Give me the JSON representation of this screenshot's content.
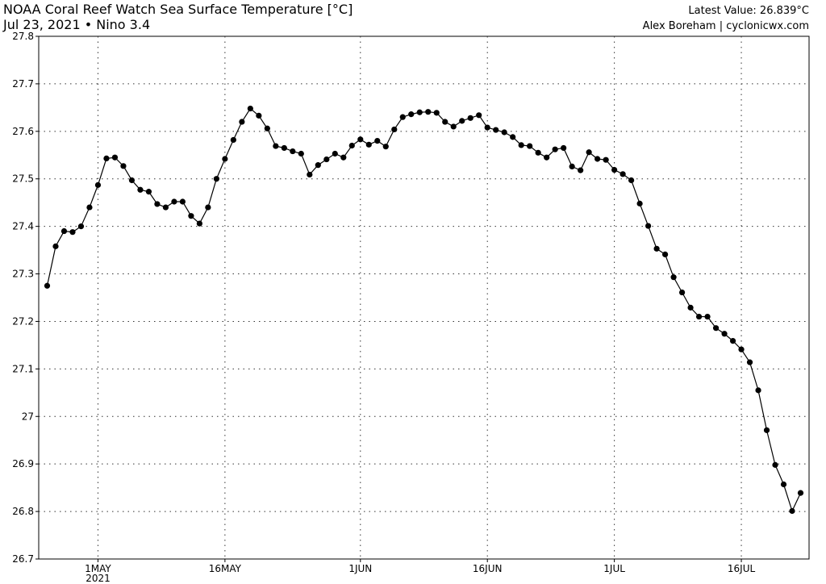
{
  "chart_data": {
    "type": "line",
    "title": "NOAA Coral Reef Watch Sea Surface Temperature [°C]",
    "subtitle": "Jul 23, 2021 • Nino 3.4",
    "annotation_latest": "Latest Value: 26.839°C",
    "annotation_credit": "Alex Boreham | cyclonicwx.com",
    "x": [
      "2021-04-25",
      "2021-04-26",
      "2021-04-27",
      "2021-04-28",
      "2021-04-29",
      "2021-04-30",
      "2021-05-01",
      "2021-05-02",
      "2021-05-03",
      "2021-05-04",
      "2021-05-05",
      "2021-05-06",
      "2021-05-07",
      "2021-05-08",
      "2021-05-09",
      "2021-05-10",
      "2021-05-11",
      "2021-05-12",
      "2021-05-13",
      "2021-05-14",
      "2021-05-15",
      "2021-05-16",
      "2021-05-17",
      "2021-05-18",
      "2021-05-19",
      "2021-05-20",
      "2021-05-21",
      "2021-05-22",
      "2021-05-23",
      "2021-05-24",
      "2021-05-25",
      "2021-05-26",
      "2021-05-27",
      "2021-05-28",
      "2021-05-29",
      "2021-05-30",
      "2021-05-31",
      "2021-06-01",
      "2021-06-02",
      "2021-06-03",
      "2021-06-04",
      "2021-06-05",
      "2021-06-06",
      "2021-06-07",
      "2021-06-08",
      "2021-06-09",
      "2021-06-10",
      "2021-06-11",
      "2021-06-12",
      "2021-06-13",
      "2021-06-14",
      "2021-06-15",
      "2021-06-16",
      "2021-06-17",
      "2021-06-18",
      "2021-06-19",
      "2021-06-20",
      "2021-06-21",
      "2021-06-22",
      "2021-06-23",
      "2021-06-24",
      "2021-06-25",
      "2021-06-26",
      "2021-06-27",
      "2021-06-28",
      "2021-06-29",
      "2021-06-30",
      "2021-07-01",
      "2021-07-02",
      "2021-07-03",
      "2021-07-04",
      "2021-07-05",
      "2021-07-06",
      "2021-07-07",
      "2021-07-08",
      "2021-07-09",
      "2021-07-10",
      "2021-07-11",
      "2021-07-12",
      "2021-07-13",
      "2021-07-14",
      "2021-07-15",
      "2021-07-16",
      "2021-07-17",
      "2021-07-18",
      "2021-07-19",
      "2021-07-20",
      "2021-07-21",
      "2021-07-22",
      "2021-07-23"
    ],
    "series": [
      {
        "color": "#000000",
        "values": [
          27.275,
          27.358,
          27.39,
          27.388,
          27.4,
          27.44,
          27.487,
          27.543,
          27.545,
          27.527,
          27.497,
          27.477,
          27.473,
          27.447,
          27.44,
          27.452,
          27.452,
          27.422,
          27.406,
          27.44,
          27.5,
          27.542,
          27.582,
          27.62,
          27.648,
          27.633,
          27.606,
          27.569,
          27.565,
          27.558,
          27.553,
          27.509,
          27.529,
          27.541,
          27.553,
          27.545,
          27.57,
          27.583,
          27.572,
          27.58,
          27.568,
          27.604,
          27.63,
          27.636,
          27.64,
          27.641,
          27.639,
          27.62,
          27.61,
          27.622,
          27.628,
          27.634,
          27.608,
          27.603,
          27.598,
          27.588,
          27.571,
          27.569,
          27.555,
          27.545,
          27.562,
          27.565,
          27.526,
          27.518,
          27.556,
          27.542,
          27.54,
          27.519,
          27.51,
          27.497,
          27.448,
          27.401,
          27.353,
          27.341,
          27.293,
          27.261,
          27.229,
          27.21,
          27.21,
          27.186,
          27.174,
          27.159,
          27.141,
          27.114,
          27.055,
          26.971,
          26.898,
          26.857,
          26.801,
          26.839
        ]
      }
    ],
    "xlim": [
      "2021-04-24",
      "2021-07-24"
    ],
    "xticks": [
      {
        "value": "2021-05-01",
        "label": "1MAY"
      },
      {
        "value": "2021-05-16",
        "label": "16MAY"
      },
      {
        "value": "2021-06-01",
        "label": "1JUN"
      },
      {
        "value": "2021-06-16",
        "label": "16JUN"
      },
      {
        "value": "2021-07-01",
        "label": "1JUL"
      },
      {
        "value": "2021-07-16",
        "label": "16JUL"
      }
    ],
    "x_year_label": "2021",
    "ylim": [
      26.7,
      27.8
    ],
    "yticks": [
      26.7,
      26.8,
      26.9,
      27,
      27.1,
      27.2,
      27.3,
      27.4,
      27.5,
      27.6,
      27.7,
      27.8
    ],
    "grid": true
  }
}
